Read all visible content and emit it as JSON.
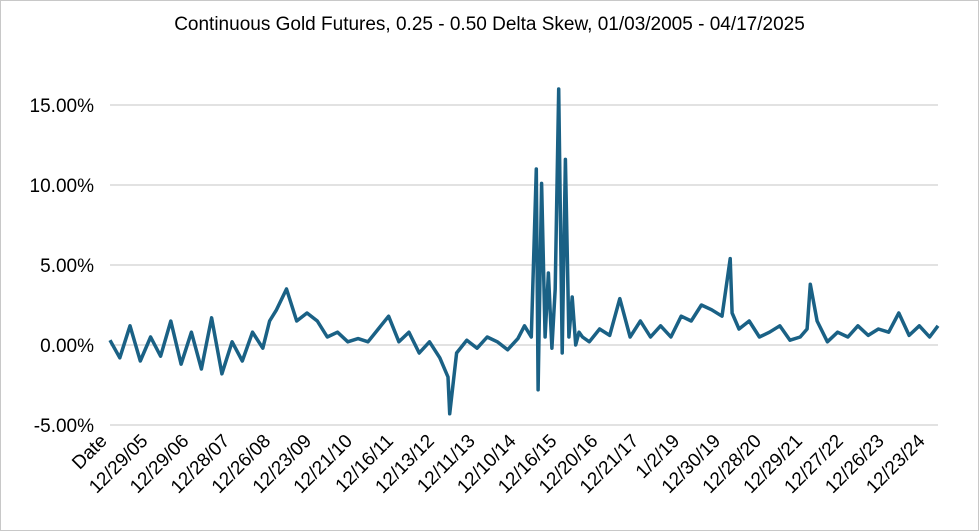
{
  "colors": {
    "series": "#1a6185",
    "grid": "#d9d9d9",
    "frame": "#c8c8c8",
    "text": "#000000"
  },
  "chart_data": {
    "type": "line",
    "title": "Continuous Gold Futures, 0.25 - 0.50 Delta Skew, 01/03/2005 - 04/17/2025",
    "xlabel": "",
    "ylabel": "",
    "ylim": [
      -5,
      16.5
    ],
    "y_ticks": [
      -5,
      0,
      5,
      10,
      15
    ],
    "y_tick_labels": [
      "-5.00%",
      "0.00%",
      "5.00%",
      "10.00%",
      "15.00%"
    ],
    "x_tick_labels": [
      "Date",
      "12/29/05",
      "12/29/06",
      "12/28/07",
      "12/26/08",
      "12/23/09",
      "12/21/10",
      "12/16/11",
      "12/13/12",
      "12/11/13",
      "12/10/14",
      "12/16/15",
      "12/20/16",
      "12/21/17",
      "1/2/19",
      "12/30/19",
      "12/28/20",
      "12/29/21",
      "12/27/22",
      "12/26/23",
      "12/23/24"
    ],
    "x_range": [
      "2005-01-03",
      "2025-04-17"
    ],
    "grid": "horizontal",
    "legend": "none",
    "series": [
      {
        "x": [
          "2005-01-03",
          "2005-04-01",
          "2005-07-01",
          "2005-10-01",
          "2006-01-01",
          "2006-04-01",
          "2006-07-01",
          "2006-10-01",
          "2007-01-01",
          "2007-04-01",
          "2007-07-01",
          "2007-10-01",
          "2008-01-01",
          "2008-04-01",
          "2008-07-01",
          "2008-10-01",
          "2008-12-01",
          "2009-02-01",
          "2009-05-01",
          "2009-08-01",
          "2009-11-01",
          "2010-02-01",
          "2010-05-01",
          "2010-08-01",
          "2010-11-01",
          "2011-02-01",
          "2011-05-01",
          "2011-08-01",
          "2011-11-01",
          "2012-02-01",
          "2012-05-01",
          "2012-08-01",
          "2012-11-01",
          "2013-02-01",
          "2013-04-15",
          "2013-05-01",
          "2013-07-01",
          "2013-10-01",
          "2014-01-01",
          "2014-04-01",
          "2014-07-01",
          "2014-10-01",
          "2015-01-01",
          "2015-03-01",
          "2015-05-01",
          "2015-06-15",
          "2015-07-01",
          "2015-08-01",
          "2015-09-01",
          "2015-10-01",
          "2015-11-01",
          "2015-12-01",
          "2016-01-01",
          "2016-02-01",
          "2016-03-01",
          "2016-04-01",
          "2016-05-01",
          "2016-06-01",
          "2016-07-01",
          "2016-08-01",
          "2016-10-01",
          "2017-01-01",
          "2017-04-01",
          "2017-07-01",
          "2017-10-01",
          "2018-01-01",
          "2018-04-01",
          "2018-07-01",
          "2018-10-01",
          "2019-01-01",
          "2019-04-01",
          "2019-07-01",
          "2019-10-01",
          "2020-01-01",
          "2020-03-15",
          "2020-04-01",
          "2020-06-01",
          "2020-09-01",
          "2020-12-01",
          "2021-03-01",
          "2021-06-01",
          "2021-09-01",
          "2021-12-01",
          "2022-02-01",
          "2022-03-01",
          "2022-05-01",
          "2022-08-01",
          "2022-11-01",
          "2023-02-01",
          "2023-05-01",
          "2023-08-01",
          "2023-11-01",
          "2024-02-01",
          "2024-05-01",
          "2024-08-01",
          "2024-11-01",
          "2025-02-01",
          "2025-04-17"
        ],
        "values": [
          0.3,
          -0.8,
          1.2,
          -1.0,
          0.5,
          -0.7,
          1.5,
          -1.2,
          0.8,
          -1.5,
          1.7,
          -1.8,
          0.2,
          -1.0,
          0.8,
          -0.2,
          1.5,
          2.2,
          3.5,
          1.5,
          2.0,
          1.5,
          0.5,
          0.8,
          0.2,
          0.4,
          0.2,
          1.0,
          1.8,
          0.2,
          0.8,
          -0.5,
          0.2,
          -0.8,
          -2.0,
          -4.3,
          -0.5,
          0.3,
          -0.2,
          0.5,
          0.2,
          -0.3,
          0.4,
          1.2,
          0.5,
          11.0,
          -2.8,
          10.1,
          0.5,
          4.5,
          -0.2,
          3.5,
          16.0,
          -0.5,
          11.6,
          0.5,
          3.0,
          0.0,
          0.8,
          0.5,
          0.2,
          1.0,
          0.6,
          2.9,
          0.5,
          1.5,
          0.5,
          1.2,
          0.5,
          1.8,
          1.5,
          2.5,
          2.2,
          1.8,
          5.4,
          2.0,
          1.0,
          1.5,
          0.5,
          0.8,
          1.2,
          0.3,
          0.5,
          1.0,
          3.8,
          1.5,
          0.2,
          0.8,
          0.5,
          1.2,
          0.6,
          1.0,
          0.8,
          2.0,
          0.6,
          1.2,
          0.5,
          1.2
        ]
      }
    ]
  }
}
